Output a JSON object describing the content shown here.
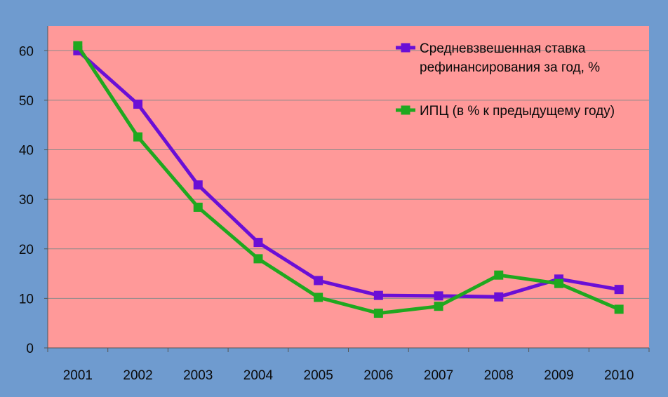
{
  "chart_data": {
    "type": "line",
    "title": "",
    "xlabel": "",
    "ylabel": "",
    "categories": [
      "2001",
      "2002",
      "2003",
      "2004",
      "2005",
      "2006",
      "2007",
      "2008",
      "2009",
      "2010"
    ],
    "ylim": [
      0,
      65
    ],
    "yticks": [
      0,
      10,
      20,
      30,
      40,
      50,
      60
    ],
    "grid": true,
    "legend_position": "top-right",
    "plot_background": "#ff9999",
    "page_background": "#6f9bcf",
    "series": [
      {
        "name": "Средневзвешенная ставка рефинансирования за год, %",
        "legend_lines": [
          "Средневзвешенная ставка",
          "рефинансирования за год, %"
        ],
        "color": "#6a0fd6",
        "values": [
          60.0,
          49.2,
          32.9,
          21.3,
          13.6,
          10.6,
          10.5,
          10.3,
          13.9,
          11.8
        ]
      },
      {
        "name": "ИПЦ  (в % к предыдущему году)",
        "legend_lines": [
          "ИПЦ  (в % к предыдущему году)"
        ],
        "color": "#1fa81f",
        "values": [
          61.0,
          42.6,
          28.4,
          18.0,
          10.2,
          7.0,
          8.4,
          14.7,
          13.0,
          7.8
        ]
      }
    ]
  }
}
